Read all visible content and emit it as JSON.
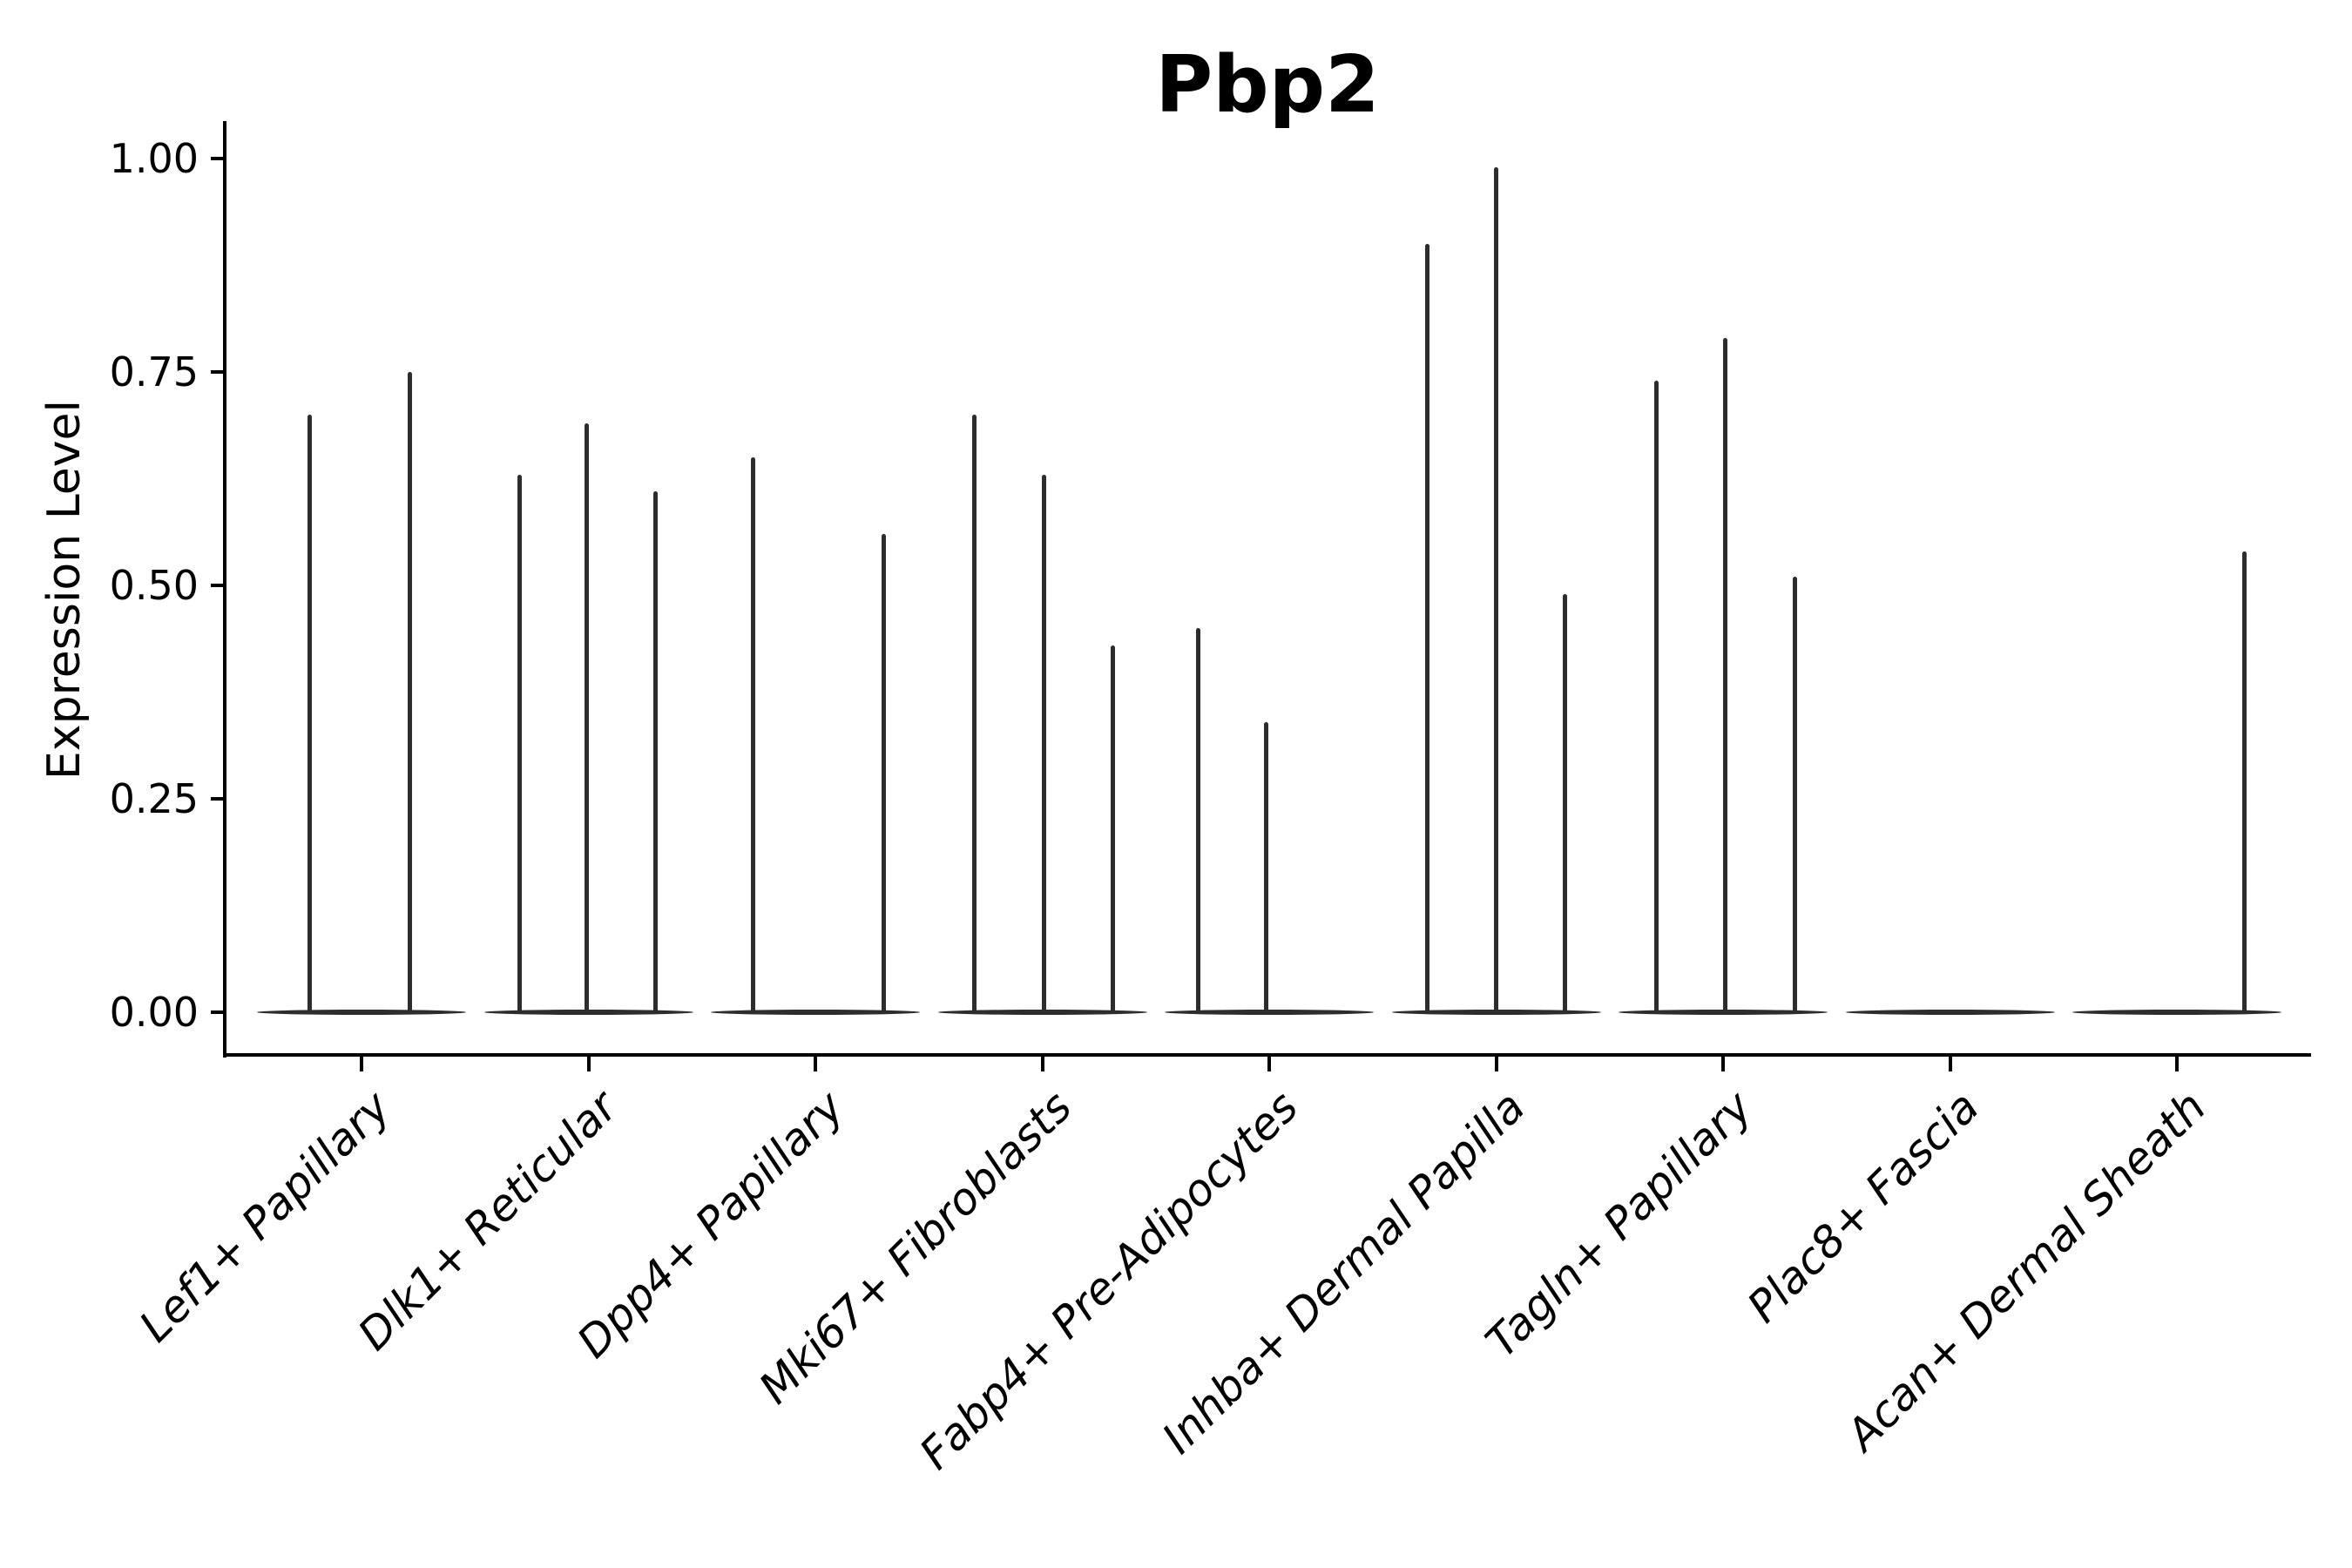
{
  "figure_title": "Pbp2",
  "y_axis_label": "Expression Level",
  "chart_data": {
    "type": "violin",
    "title": "Pbp2",
    "xlabel": "",
    "ylabel": "Expression Level",
    "ylim": [
      0,
      1.05
    ],
    "yticks": [
      0,
      0.25,
      0.5,
      0.75,
      1.0
    ],
    "ytick_labels": [
      "0.00",
      "0.25",
      "0.50",
      "0.75",
      "1.00"
    ],
    "grid": false,
    "legend": false,
    "style_note": "Seurat-style single-cell expression violin plot; each category shows a flat zero-expression baseline violin with narrow vertical density spikes reaching the listed maximum expression values",
    "categories": [
      "Lef1+ Papillary",
      "Dlk1+ Reticular",
      "Dpp4+ Papillary",
      "Mki67+ Fibroblasts",
      "Fabp4+ Pre-Adipocytes",
      "Inhba+ Dermal Papilla",
      "Tagln+ Papillary",
      "Plac8+ Fascia",
      "Acan+ Dermal Sheath"
    ],
    "groups": [
      {
        "category": "Lef1+ Papillary",
        "zero_baseline": true,
        "spikes": [
          {
            "offset": -60,
            "max": 0.7
          },
          {
            "offset": 55,
            "max": 0.75
          }
        ]
      },
      {
        "category": "Dlk1+ Reticular",
        "zero_baseline": true,
        "spikes": [
          {
            "offset": -79,
            "max": 0.63
          },
          {
            "offset": -2,
            "max": 0.69
          },
          {
            "offset": 77,
            "max": 0.61
          }
        ]
      },
      {
        "category": "Dpp4+ Papillary",
        "zero_baseline": true,
        "spikes": [
          {
            "offset": -72,
            "max": 0.65
          },
          {
            "offset": 78,
            "max": 0.56
          }
        ]
      },
      {
        "category": "Mki67+ Fibroblasts",
        "zero_baseline": true,
        "spikes": [
          {
            "offset": -78,
            "max": 0.7
          },
          {
            "offset": 2,
            "max": 0.63
          },
          {
            "offset": 81,
            "max": 0.43
          }
        ]
      },
      {
        "category": "Fabp4+ Pre-Adipocytes",
        "zero_baseline": true,
        "spikes": [
          {
            "offset": -82,
            "max": 0.45
          },
          {
            "offset": -4,
            "max": 0.34
          }
        ]
      },
      {
        "category": "Inhba+ Dermal Papilla",
        "zero_baseline": true,
        "spikes": [
          {
            "offset": -79,
            "max": 0.9
          },
          {
            "offset": 0,
            "max": 0.99
          },
          {
            "offset": 79,
            "max": 0.49
          }
        ]
      },
      {
        "category": "Tagln+ Papillary",
        "zero_baseline": true,
        "spikes": [
          {
            "offset": -77,
            "max": 0.74
          },
          {
            "offset": 2,
            "max": 0.79
          },
          {
            "offset": 82,
            "max": 0.51
          }
        ]
      },
      {
        "category": "Plac8+ Fascia",
        "zero_baseline": true,
        "spikes": []
      },
      {
        "category": "Acan+ Dermal Sheath",
        "zero_baseline": true,
        "spikes": [
          {
            "offset": 77,
            "max": 0.54
          }
        ]
      }
    ],
    "colors": {
      "violin": "#2d2d2d",
      "axis": "#000000",
      "text": "#000000",
      "background": "#ffffff"
    }
  }
}
